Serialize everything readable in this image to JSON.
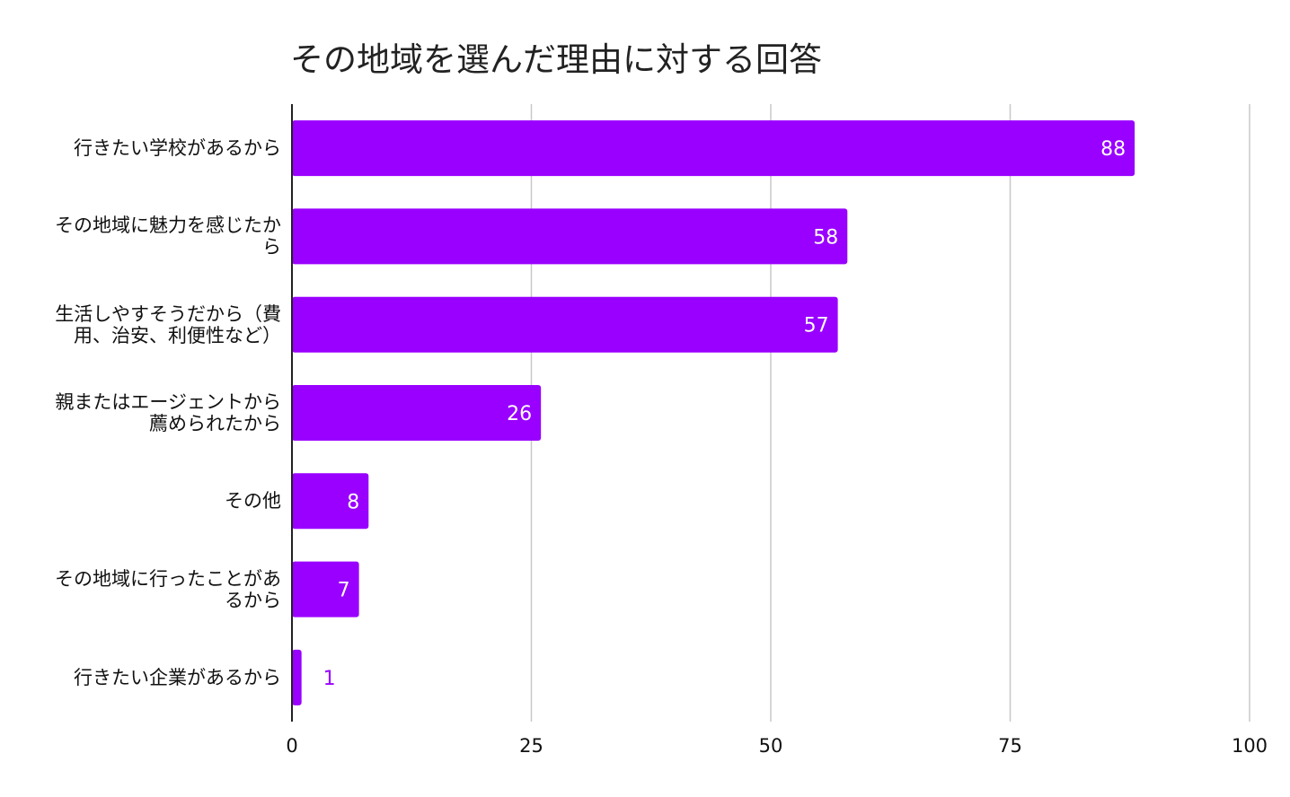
{
  "chart_data": {
    "type": "bar",
    "orientation": "horizontal",
    "title": "その地域を選んだ理由に対する回答",
    "categories": [
      "行きたい学校があるから",
      "その地域に魅力を感じたから",
      "生活しやすそうだから（費用、治安、利便性など）",
      "親またはエージェントから薦められたから",
      "その他",
      "その地域に行ったことがあるから",
      "行きたい企業があるから"
    ],
    "values": [
      88,
      58,
      57,
      26,
      8,
      7,
      1
    ],
    "xlim": [
      0,
      100
    ],
    "xticks": [
      "0",
      "25",
      "50",
      "75",
      "100"
    ],
    "xlabel": "",
    "ylabel": "",
    "grid": true,
    "legend": "none",
    "bar_color": "#9900ff",
    "label_color_inside": "#ffffff",
    "label_color_outside": "#9900ff"
  }
}
